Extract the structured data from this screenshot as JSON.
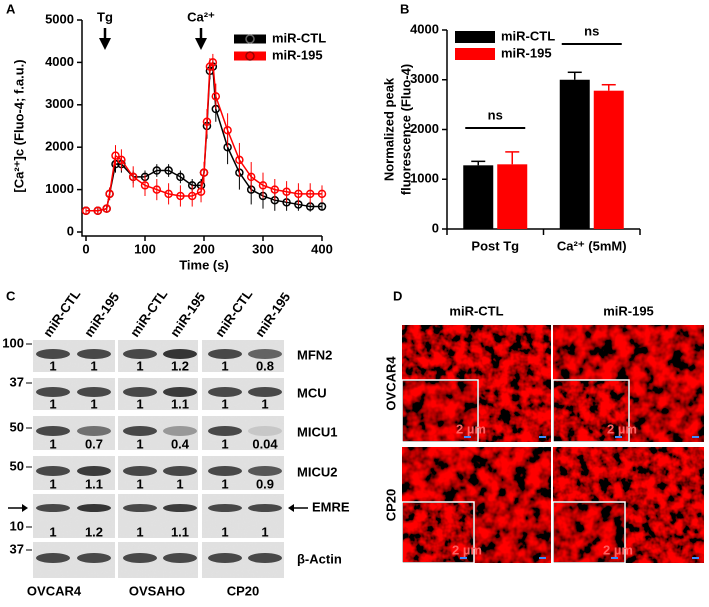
{
  "chart_data": [
    {
      "type": "line",
      "label": "A",
      "ylabel": "[Ca²⁺]c (Fluo-4; f.a.u.)",
      "xlabel": "Time (s)",
      "annotations": [
        "Tg",
        "Ca²⁺"
      ],
      "legend": "upper right",
      "x": [
        0,
        20,
        35,
        40,
        50,
        60,
        80,
        100,
        120,
        140,
        160,
        180,
        195,
        200,
        205,
        210,
        215,
        220,
        240,
        260,
        280,
        300,
        320,
        340,
        360,
        380,
        400
      ],
      "series": [
        {
          "name": "miR-CTL",
          "color": "#000000",
          "values": [
            500,
            500,
            550,
            900,
            1600,
            1600,
            1300,
            1300,
            1450,
            1450,
            1300,
            1100,
            1100,
            1400,
            2500,
            3800,
            3900,
            2900,
            2000,
            1400,
            1000,
            850,
            750,
            700,
            650,
            600,
            600
          ],
          "errors": [
            60,
            60,
            80,
            150,
            200,
            200,
            150,
            150,
            150,
            150,
            150,
            150,
            150,
            200,
            300,
            200,
            200,
            300,
            400,
            400,
            350,
            300,
            250,
            200,
            150,
            120,
            100
          ]
        },
        {
          "name": "miR-195",
          "color": "#ff0000",
          "values": [
            500,
            500,
            550,
            900,
            1800,
            1700,
            1300,
            1100,
            1000,
            900,
            850,
            850,
            950,
            1400,
            2600,
            3900,
            4000,
            3200,
            2400,
            1700,
            1300,
            1100,
            1000,
            950,
            900,
            900,
            900
          ],
          "errors": [
            60,
            60,
            80,
            150,
            250,
            250,
            250,
            250,
            250,
            250,
            250,
            250,
            250,
            250,
            300,
            200,
            200,
            300,
            400,
            400,
            350,
            300,
            250,
            250,
            250,
            250,
            200
          ]
        }
      ],
      "xlim": [
        0,
        400
      ],
      "xticks": [
        0,
        100,
        200,
        300,
        400
      ],
      "ylim": [
        0,
        5000
      ],
      "yticks": [
        0,
        1000,
        2000,
        3000,
        4000,
        5000
      ]
    },
    {
      "type": "bar",
      "label": "B",
      "ylabel": [
        "Normalized peak",
        "fluorescence (Fluo-4)"
      ],
      "categories": [
        "Post Tg",
        "Ca²⁺ (5mM)"
      ],
      "annotations": [
        "ns",
        "ns"
      ],
      "legend": "upper left",
      "series": [
        {
          "name": "miR-CTL",
          "color": "#000000",
          "values": [
            1280,
            3000
          ],
          "errors": [
            80,
            150
          ]
        },
        {
          "name": "miR-195",
          "color": "#ff0000",
          "values": [
            1300,
            2780
          ],
          "errors": [
            250,
            120
          ]
        }
      ],
      "ylim": [
        0,
        4000
      ],
      "yticks": [
        0,
        1000,
        2000,
        3000,
        4000
      ]
    }
  ],
  "blot": {
    "label": "C",
    "lanes": [
      "miR-CTL",
      "miR-195",
      "miR-CTL",
      "miR-195",
      "miR-CTL",
      "miR-195"
    ],
    "cell_lines": [
      "OVCAR4",
      "OVSAHO",
      "CP20"
    ],
    "rows": [
      {
        "protein": "MFN2",
        "marker": "100",
        "values": [
          1,
          1,
          1,
          1.2,
          1,
          0.8
        ]
      },
      {
        "protein": "MCU",
        "marker": "37",
        "values": [
          1,
          1,
          1,
          1.1,
          1,
          1
        ]
      },
      {
        "protein": "MICU1",
        "marker": "50",
        "values": [
          1,
          0.7,
          1,
          0.4,
          1,
          0.04
        ]
      },
      {
        "protein": "MICU2",
        "marker": "50",
        "values": [
          1,
          1.1,
          1,
          1,
          1,
          0.9
        ]
      },
      {
        "protein": "EMRE",
        "marker": "10",
        "values": [
          1,
          1.2,
          1,
          1.1,
          1,
          1
        ]
      },
      {
        "protein": "β-Actin",
        "marker": "37"
      }
    ]
  },
  "microscopy": {
    "label": "D",
    "columns": [
      "miR-CTL",
      "miR-195"
    ],
    "rows": [
      "OVCAR4",
      "CP20"
    ],
    "scale_label": "2 µm"
  }
}
